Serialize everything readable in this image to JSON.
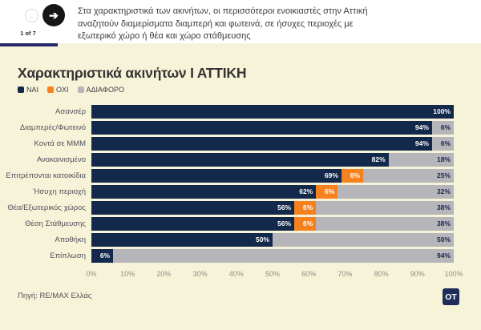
{
  "header": {
    "pagination": "1 of 7",
    "prev_icon": "←",
    "next_icon": "➔",
    "description": "Στα χαρακτηριστικά των ακινήτων, οι περισσότεροι ενοικιαστές στην Αττική αναζητούν διαμερίσματα διαμπερή και φωτεινά, σε ήσυχες περιοχές με εξωτερικό χώρο ή θέα και χώρο στάθμευσης"
  },
  "chart": {
    "title": "Χαρακτηριστικά ακινήτων Ι ΑΤΤΙΚΗ",
    "source": "Πηγή: RE/MAX Ελλάς",
    "logo_text": "OT",
    "colors": {
      "yes": "#13294b",
      "no": "#f5821f",
      "neutral": "#b5b5ba",
      "background": "#f7f3d9",
      "progress": "#23296b"
    }
  },
  "chart_data": {
    "type": "bar",
    "orientation": "horizontal",
    "stacked": true,
    "grid": false,
    "legend_position": "top-left",
    "title": "Χαρακτηριστικά ακινήτων Ι ΑΤΤΙΚΗ",
    "categories": [
      "Ασανσέρ",
      "Διαμπερές/Φωτεινό",
      "Κοντά σε ΜΜΜ",
      "Ανακαινισμένο",
      "Επιτρέπονται κατοικίδια",
      "Ήσυχη περιοχή",
      "Θέα/Εξωτερικός χώρος",
      "Θέση Στάθμευσης",
      "Αποθήκη",
      "Επίπλωση"
    ],
    "series": [
      {
        "name": "ΝΑΙ",
        "key": "yes",
        "color": "#13294b",
        "label_color": "#ffffff",
        "values": [
          100,
          94,
          94,
          82,
          69,
          62,
          56,
          56,
          50,
          6
        ]
      },
      {
        "name": "ΟΧΙ",
        "key": "no",
        "color": "#f5821f",
        "label_color": "#ffffff",
        "values": [
          0,
          0,
          0,
          0,
          6,
          6,
          6,
          6,
          0,
          0
        ]
      },
      {
        "name": "ΑΔΙΑΦΟΡΟ",
        "key": "neutral",
        "color": "#b5b5ba",
        "label_color": "#13294b",
        "values": [
          0,
          6,
          6,
          18,
          25,
          32,
          38,
          38,
          50,
          94
        ]
      }
    ],
    "x_ticks": [
      "0%",
      "10%",
      "20%",
      "30%",
      "40%",
      "50%",
      "60%",
      "70%",
      "80%",
      "90%",
      "100%"
    ],
    "xlim": [
      0,
      100
    ]
  }
}
